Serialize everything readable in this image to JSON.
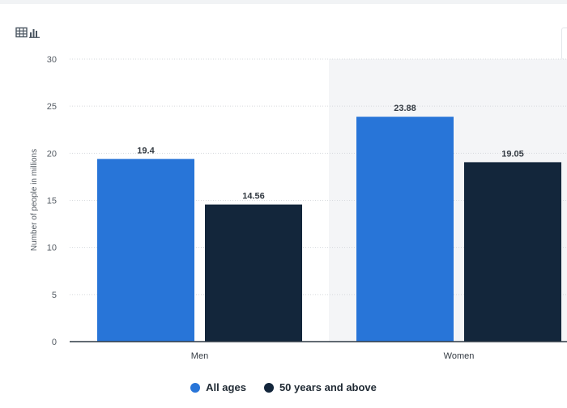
{
  "toolbar": {
    "icon": "table-chart-icon"
  },
  "colors": {
    "all_ages": "#2875d8",
    "fifty_plus": "#13263b",
    "highlight_band": "#f4f5f7",
    "grid": "#d6d9dd"
  },
  "chart_data": {
    "type": "bar",
    "categories": [
      "Men",
      "Women"
    ],
    "series": [
      {
        "name": "All ages",
        "values": [
          19.4,
          23.88
        ]
      },
      {
        "name": "50 years and above",
        "values": [
          14.56,
          19.05
        ]
      }
    ],
    "data_labels": [
      [
        "19.4",
        "23.88"
      ],
      [
        "14.56",
        "19.05"
      ]
    ],
    "ylabel": "Number of people in millions",
    "xlabel": "",
    "ylim": [
      0,
      30
    ],
    "yticks": [
      0,
      5,
      10,
      15,
      20,
      25,
      30
    ],
    "grid": true,
    "legend_position": "bottom"
  }
}
